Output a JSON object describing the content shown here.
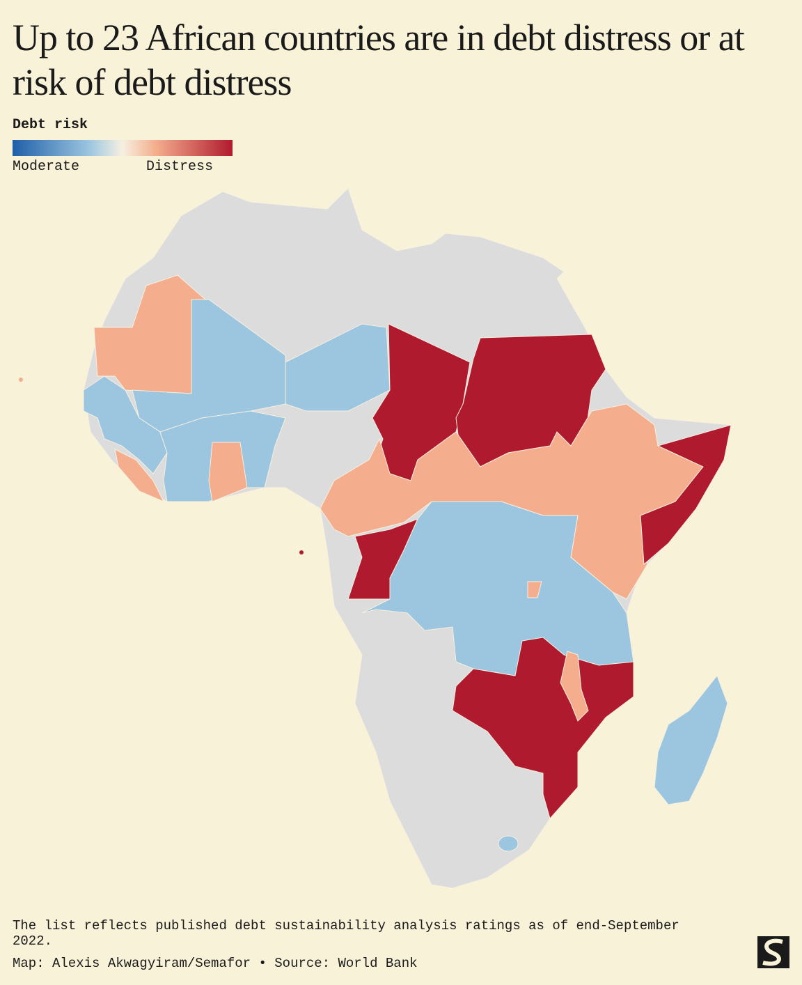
{
  "header": {
    "title": "Up to 23 African countries are in debt distress or at risk of debt distress"
  },
  "legend": {
    "title": "Debt risk",
    "low_label": "Moderate",
    "high_label": "Distress"
  },
  "footer": {
    "note": "The list reflects published debt sustainability analysis ratings as of end-September 2022.",
    "credit": "Map: Alexis Akwagyiram/Semafor • Source: World Bank"
  }
}
